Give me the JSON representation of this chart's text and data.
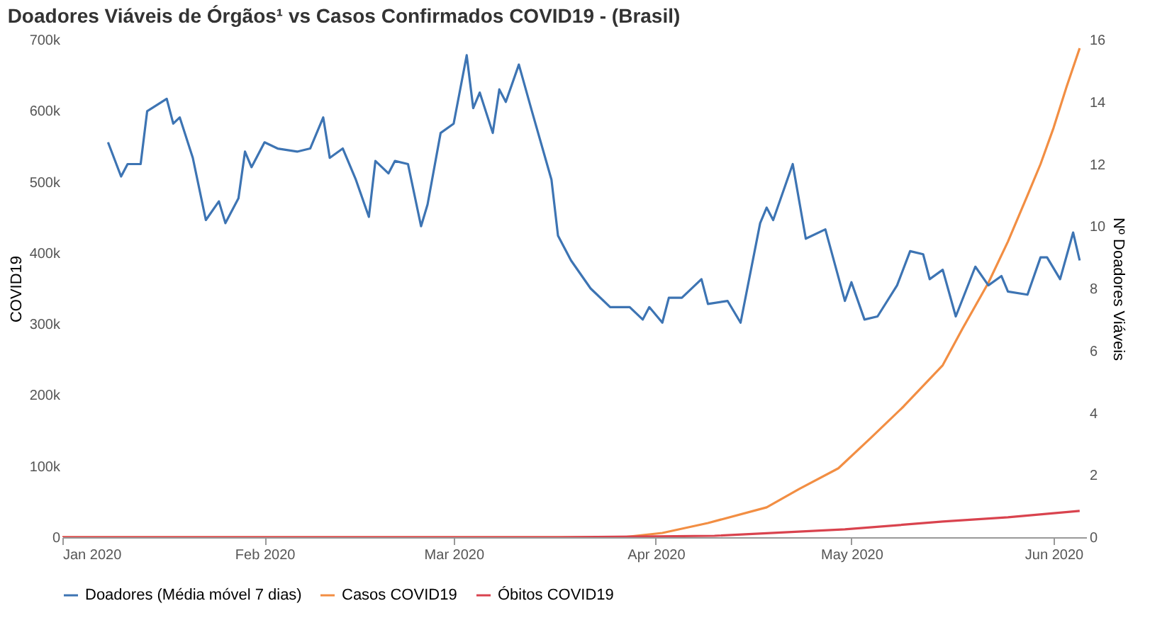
{
  "chart_data": {
    "type": "line",
    "title": "Doadores Viáveis de Órgãos¹ vs Casos Confirmados COVID19 - (Brasil)",
    "ylabel": "COVID19",
    "y2label": "Nº Doadores Viáveis",
    "xlim": [
      "2020-01-01",
      "2020-06-06"
    ],
    "xticks": [
      {
        "value": "2020-01-01",
        "label": "Jan 2020"
      },
      {
        "value": "2020-02-01",
        "label": "Feb 2020"
      },
      {
        "value": "2020-03-01",
        "label": "Mar 2020"
      },
      {
        "value": "2020-04-01",
        "label": "Apr 2020"
      },
      {
        "value": "2020-05-01",
        "label": "May 2020"
      },
      {
        "value": "2020-06-01",
        "label": "Jun 2020"
      }
    ],
    "ylim": [
      0,
      700000
    ],
    "yticks": [
      0,
      {
        "value": 100000,
        "label": "100k"
      },
      {
        "value": 200000,
        "label": "200k"
      },
      {
        "value": 300000,
        "label": "300k"
      },
      {
        "value": 400000,
        "label": "400k"
      },
      {
        "value": 500000,
        "label": "500k"
      },
      {
        "value": 600000,
        "label": "600k"
      },
      {
        "value": 700000,
        "label": "700k"
      }
    ],
    "y2lim": [
      0,
      16
    ],
    "y2ticks": [
      0,
      2,
      4,
      6,
      8,
      10,
      12,
      14,
      16
    ],
    "grid": false,
    "legend": "bottom",
    "marker": "none",
    "line_style": "solid",
    "series": [
      {
        "name": "Doadores (Média móvel 7 dias)",
        "color": "#3d74b3",
        "axis": "y2",
        "x": [
          "2020-01-08",
          "2020-01-10",
          "2020-01-11",
          "2020-01-13",
          "2020-01-14",
          "2020-01-17",
          "2020-01-18",
          "2020-01-19",
          "2020-01-21",
          "2020-01-23",
          "2020-01-25",
          "2020-01-26",
          "2020-01-28",
          "2020-01-29",
          "2020-01-30",
          "2020-02-01",
          "2020-02-03",
          "2020-02-06",
          "2020-02-08",
          "2020-02-10",
          "2020-02-11",
          "2020-02-13",
          "2020-02-15",
          "2020-02-17",
          "2020-02-18",
          "2020-02-20",
          "2020-02-21",
          "2020-02-23",
          "2020-02-25",
          "2020-02-26",
          "2020-02-28",
          "2020-03-01",
          "2020-03-03",
          "2020-03-04",
          "2020-03-05",
          "2020-03-07",
          "2020-03-08",
          "2020-03-09",
          "2020-03-11",
          "2020-03-13",
          "2020-03-16",
          "2020-03-17",
          "2020-03-19",
          "2020-03-22",
          "2020-03-23",
          "2020-03-25",
          "2020-03-28",
          "2020-03-30",
          "2020-03-31",
          "2020-04-02",
          "2020-04-03",
          "2020-04-05",
          "2020-04-07",
          "2020-04-08",
          "2020-04-09",
          "2020-04-12",
          "2020-04-14",
          "2020-04-17",
          "2020-04-18",
          "2020-04-19",
          "2020-04-22",
          "2020-04-24",
          "2020-04-27",
          "2020-04-30",
          "2020-05-01",
          "2020-05-03",
          "2020-05-05",
          "2020-05-08",
          "2020-05-10",
          "2020-05-12",
          "2020-05-13",
          "2020-05-15",
          "2020-05-17",
          "2020-05-20",
          "2020-05-22",
          "2020-05-24",
          "2020-05-25",
          "2020-05-28",
          "2020-05-30",
          "2020-05-31",
          "2020-06-02",
          "2020-06-04",
          "2020-06-05"
        ],
        "values": [
          12.7,
          11.6,
          12.0,
          12.0,
          13.7,
          14.1,
          13.3,
          13.5,
          12.2,
          10.2,
          10.8,
          10.1,
          10.9,
          12.4,
          11.9,
          12.7,
          12.5,
          12.4,
          12.5,
          13.5,
          12.2,
          12.5,
          11.5,
          10.3,
          12.1,
          11.7,
          12.1,
          12.0,
          10.0,
          10.7,
          13.0,
          13.3,
          15.5,
          13.8,
          14.3,
          13.0,
          14.4,
          14.0,
          15.2,
          13.7,
          11.5,
          9.7,
          8.9,
          8.0,
          7.8,
          7.4,
          7.4,
          7.0,
          7.4,
          6.9,
          7.7,
          7.7,
          8.1,
          8.3,
          7.5,
          7.6,
          6.9,
          10.1,
          10.6,
          10.2,
          12.0,
          9.6,
          9.9,
          7.6,
          8.2,
          7.0,
          7.1,
          8.1,
          9.2,
          9.1,
          8.3,
          8.6,
          7.1,
          8.7,
          8.1,
          8.4,
          7.9,
          7.8,
          9.0,
          9.0,
          8.3,
          9.8,
          8.9
        ]
      },
      {
        "name": "Casos COVID19",
        "color": "#f28e43",
        "x": [
          "2020-01-01",
          "2020-02-26",
          "2020-03-27",
          "2020-04-02",
          "2020-04-09",
          "2020-04-18",
          "2020-04-23",
          "2020-04-29",
          "2020-05-04",
          "2020-05-09",
          "2020-05-15",
          "2020-05-18",
          "2020-05-22",
          "2020-05-25",
          "2020-05-28",
          "2020-05-30",
          "2020-06-01",
          "2020-06-03",
          "2020-06-05"
        ],
        "values": [
          0,
          0,
          0,
          6000,
          20000,
          42000,
          68000,
          97000,
          140000,
          184000,
          242000,
          293000,
          358000,
          416000,
          481000,
          525000,
          576000,
          634000,
          688000
        ]
      },
      {
        "name": "Óbitos COVID19",
        "color": "#d9434e",
        "x": [
          "2020-01-01",
          "2020-03-17",
          "2020-04-10",
          "2020-04-30",
          "2020-05-15",
          "2020-05-25",
          "2020-06-05"
        ],
        "values": [
          0,
          0,
          2000,
          11000,
          22000,
          28000,
          37000
        ]
      }
    ]
  }
}
